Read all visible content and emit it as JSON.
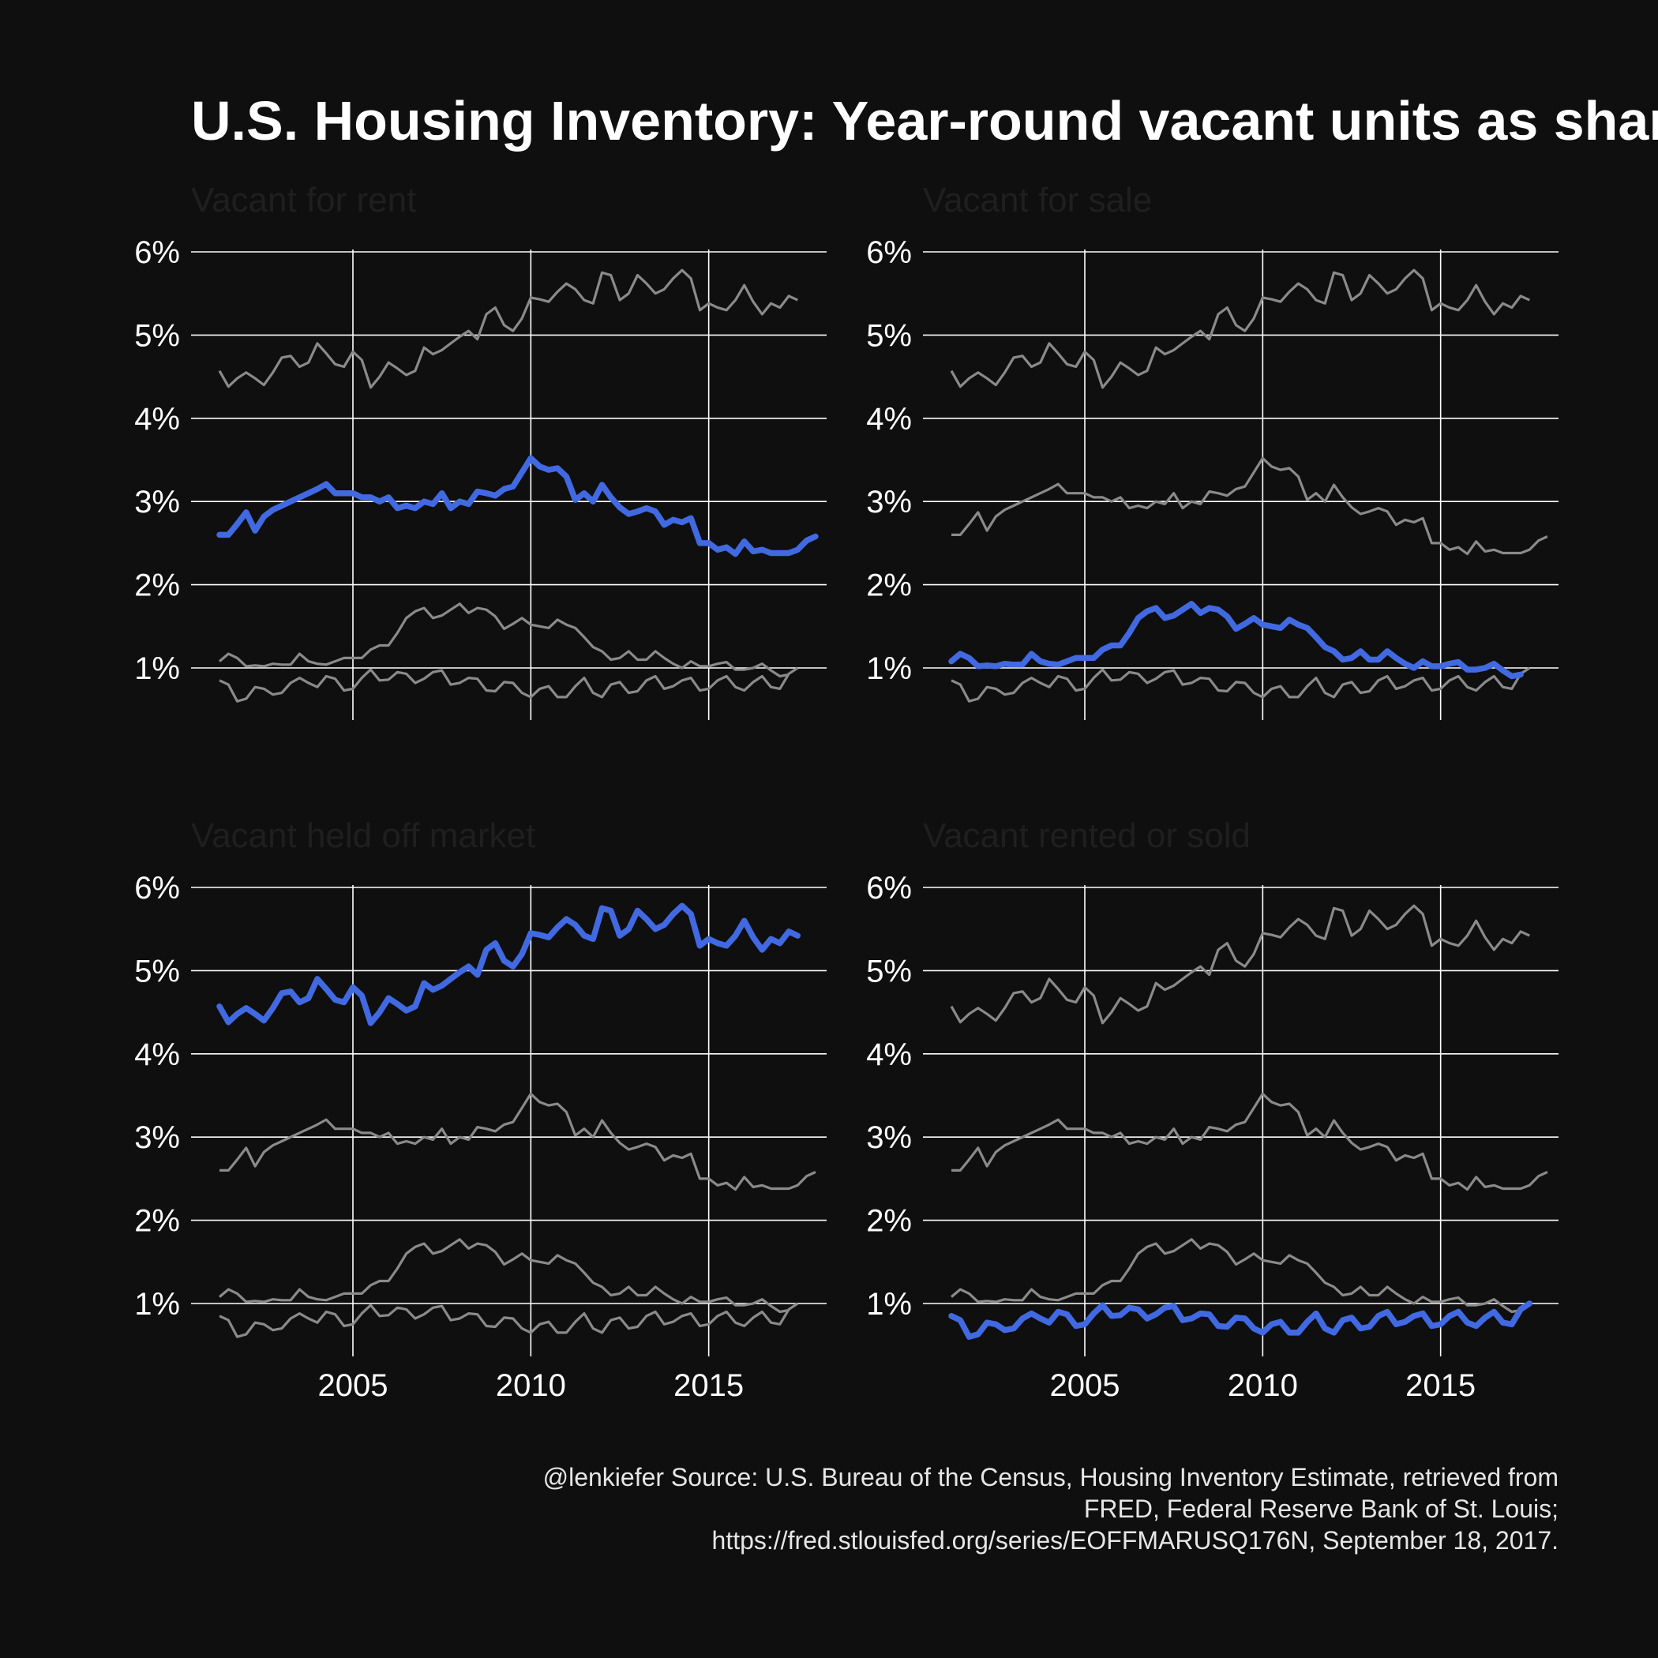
{
  "header": {
    "title": "U.S. Housing Inventory: Year-round vacant units as share of tota"
  },
  "caption": {
    "lines": [
      "@lenkiefer Source: U.S. Bureau of the Census, Housing Inventory Estimate, retrieved from",
      "FRED, Federal Reserve Bank of St. Louis;",
      "https://fred.stlouisfed.org/series/EOFFMARUSQ176N, September 18, 2017."
    ]
  },
  "chart_data": {
    "type": "line",
    "layout": "small-multiples 2x2",
    "grid": true,
    "legend": "none",
    "x_start": 2001.25,
    "x_step": 0.25,
    "x_ticks": [
      2005,
      2010,
      2015
    ],
    "x_tick_labels": [
      "2005",
      "2010",
      "2015"
    ],
    "y_ticks": [
      1,
      2,
      3,
      4,
      5,
      6
    ],
    "y_tick_labels": [
      "1%",
      "2%",
      "3%",
      "4%",
      "5%",
      "6%"
    ],
    "ylim": [
      0.35,
      6.05
    ],
    "xlim": [
      2001.0,
      2017.75
    ],
    "series": [
      {
        "name": "Vacant for rent",
        "values": [
          2.6,
          2.6,
          2.73,
          2.87,
          2.65,
          2.82,
          2.9,
          2.95,
          3.0,
          3.05,
          3.1,
          3.15,
          3.21,
          3.1,
          3.1,
          3.1,
          3.05,
          3.05,
          3.0,
          3.05,
          2.92,
          2.95,
          2.92,
          3.0,
          2.97,
          3.1,
          2.92,
          3.0,
          2.97,
          3.12,
          3.1,
          3.07,
          3.15,
          3.18,
          3.35,
          3.52,
          3.42,
          3.38,
          3.4,
          3.3,
          3.02,
          3.1,
          3.0,
          3.2,
          3.05,
          2.93,
          2.85,
          2.88,
          2.92,
          2.88,
          2.72,
          2.78,
          2.75,
          2.8,
          2.5,
          2.5,
          2.42,
          2.45,
          2.37,
          2.52,
          2.4,
          2.42,
          2.38,
          2.38,
          2.38,
          2.42,
          2.53,
          2.58
        ]
      },
      {
        "name": "Vacant for sale",
        "values": [
          1.08,
          1.17,
          1.12,
          1.02,
          1.03,
          1.02,
          1.05,
          1.04,
          1.04,
          1.17,
          1.08,
          1.05,
          1.04,
          1.08,
          1.12,
          1.12,
          1.12,
          1.22,
          1.27,
          1.27,
          1.42,
          1.6,
          1.68,
          1.72,
          1.6,
          1.63,
          1.7,
          1.77,
          1.66,
          1.72,
          1.7,
          1.62,
          1.47,
          1.53,
          1.6,
          1.52,
          1.5,
          1.48,
          1.58,
          1.52,
          1.48,
          1.37,
          1.25,
          1.2,
          1.1,
          1.12,
          1.2,
          1.1,
          1.1,
          1.2,
          1.12,
          1.05,
          1.0,
          1.08,
          1.02,
          1.02,
          1.05,
          1.07,
          0.98,
          0.98,
          1.0,
          1.05,
          0.97,
          0.9,
          0.92
        ]
      },
      {
        "name": "Vacant held off market",
        "values": [
          4.57,
          4.38,
          4.48,
          4.55,
          4.48,
          4.4,
          4.55,
          4.73,
          4.75,
          4.62,
          4.67,
          4.9,
          4.78,
          4.65,
          4.62,
          4.8,
          4.7,
          4.37,
          4.5,
          4.67,
          4.6,
          4.52,
          4.57,
          4.85,
          4.77,
          4.82,
          4.9,
          4.98,
          5.05,
          4.95,
          5.25,
          5.33,
          5.12,
          5.05,
          5.2,
          5.45,
          5.43,
          5.4,
          5.52,
          5.62,
          5.55,
          5.42,
          5.38,
          5.75,
          5.72,
          5.42,
          5.5,
          5.72,
          5.62,
          5.5,
          5.55,
          5.68,
          5.78,
          5.68,
          5.3,
          5.38,
          5.33,
          5.3,
          5.42,
          5.6,
          5.4,
          5.25,
          5.38,
          5.33,
          5.47,
          5.42
        ]
      },
      {
        "name": "Vacant rented or sold",
        "values": [
          0.85,
          0.8,
          0.6,
          0.63,
          0.77,
          0.75,
          0.68,
          0.7,
          0.82,
          0.88,
          0.82,
          0.77,
          0.9,
          0.87,
          0.73,
          0.75,
          0.88,
          0.98,
          0.85,
          0.86,
          0.95,
          0.93,
          0.82,
          0.87,
          0.95,
          0.97,
          0.8,
          0.82,
          0.88,
          0.87,
          0.73,
          0.72,
          0.83,
          0.82,
          0.7,
          0.65,
          0.75,
          0.78,
          0.65,
          0.65,
          0.78,
          0.88,
          0.7,
          0.65,
          0.8,
          0.83,
          0.7,
          0.72,
          0.85,
          0.9,
          0.75,
          0.78,
          0.85,
          0.88,
          0.73,
          0.75,
          0.85,
          0.9,
          0.77,
          0.73,
          0.83,
          0.9,
          0.77,
          0.75,
          0.93,
          1.0
        ]
      }
    ]
  }
}
